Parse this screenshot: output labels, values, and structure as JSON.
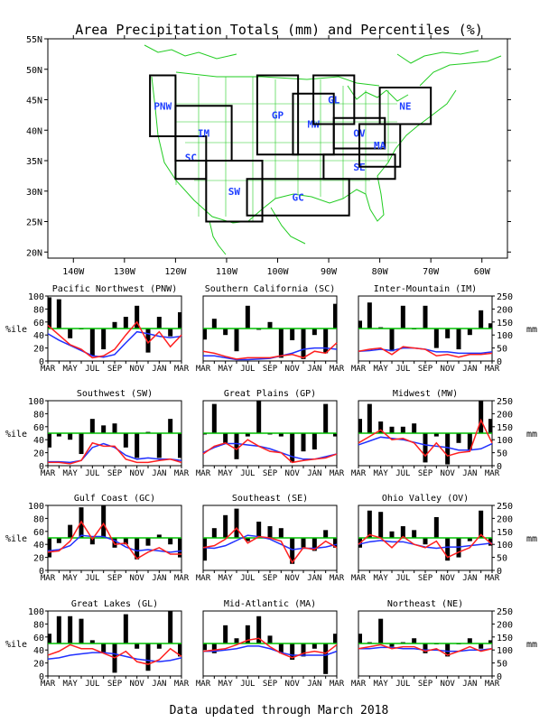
{
  "title": "Area Precipitation Totals (mm) and Percentiles (%)",
  "footer": "Data updated through March 2018",
  "colors": {
    "bar": "#000000",
    "percentile_line": "#ff2020",
    "normal_line": "#2030ff",
    "reference_line": "#00c000",
    "map_lines": "#22cc22",
    "region_box": "#000000",
    "region_label": "#1f3fff"
  },
  "map": {
    "lon_labels": [
      "140W",
      "130W",
      "120W",
      "110W",
      "100W",
      "90W",
      "80W",
      "70W",
      "60W"
    ],
    "lat_labels": [
      "55N",
      "50N",
      "45N",
      "40N",
      "35N",
      "30N",
      "25N",
      "20N"
    ],
    "regions": [
      "PNW",
      "SC",
      "IM",
      "SW",
      "GP",
      "MW",
      "GL",
      "OV",
      "SE",
      "GC",
      "MA",
      "NE"
    ]
  },
  "panel_axes": {
    "months": [
      "MAR",
      "MAY",
      "JUL",
      "SEP",
      "NOV",
      "JAN",
      "MAR"
    ],
    "left_ticks": [
      "100",
      "80",
      "60",
      "40",
      "20",
      "0"
    ],
    "right_ticks": [
      "250",
      "200",
      "150",
      "100",
      "50",
      "0"
    ],
    "left_label": "%ile",
    "right_label": "mm"
  },
  "chart_data": [
    {
      "type": "bar",
      "title": "Pacific Northwest (PNW)",
      "categories": [
        "MAR",
        "APR",
        "MAY",
        "JUN",
        "JUL",
        "AUG",
        "SEP",
        "OCT",
        "NOV",
        "DEC",
        "JAN",
        "FEB",
        "MAR"
      ],
      "ylim": [
        0,
        100
      ],
      "y2lim": [
        0,
        250
      ],
      "series": [
        {
          "values": [
            98,
            95,
            35,
            50,
            8,
            18,
            60,
            68,
            85,
            13,
            68,
            38,
            75
          ]
        },
        {
          "values": [
            55,
            40,
            25,
            18,
            5,
            8,
            18,
            40,
            60,
            28,
            45,
            22,
            40
          ]
        },
        {
          "values": [
            42,
            32,
            24,
            16,
            8,
            6,
            10,
            28,
            45,
            42,
            38,
            36,
            38
          ]
        }
      ]
    },
    {
      "type": "bar",
      "title": "Southern California (SC)",
      "categories": [
        "MAR",
        "APR",
        "MAY",
        "JUN",
        "JUL",
        "AUG",
        "SEP",
        "OCT",
        "NOV",
        "DEC",
        "JAN",
        "FEB",
        "MAR"
      ],
      "ylim": [
        0,
        100
      ],
      "y2lim": [
        0,
        250
      ],
      "series": [
        {
          "values": [
            33,
            65,
            40,
            15,
            85,
            48,
            60,
            5,
            32,
            3,
            40,
            12,
            88
          ]
        },
        {
          "values": [
            15,
            12,
            7,
            3,
            5,
            5,
            5,
            8,
            10,
            5,
            15,
            12,
            28
          ]
        },
        {
          "values": [
            8,
            8,
            5,
            2,
            2,
            3,
            4,
            8,
            12,
            18,
            20,
            20,
            18
          ]
        }
      ]
    },
    {
      "type": "bar",
      "title": "Inter-Mountain (IM)",
      "categories": [
        "MAR",
        "APR",
        "MAY",
        "JUN",
        "JUL",
        "AUG",
        "SEP",
        "OCT",
        "NOV",
        "DEC",
        "JAN",
        "FEB",
        "MAR"
      ],
      "ylim": [
        0,
        100
      ],
      "y2lim": [
        0,
        250
      ],
      "series": [
        {
          "values": [
            62,
            90,
            52,
            15,
            85,
            50,
            85,
            20,
            35,
            18,
            40,
            78,
            58
          ]
        },
        {
          "values": [
            15,
            18,
            20,
            10,
            22,
            20,
            18,
            8,
            10,
            6,
            10,
            10,
            12
          ]
        },
        {
          "values": [
            15,
            16,
            18,
            16,
            20,
            20,
            18,
            14,
            14,
            12,
            12,
            12,
            14
          ]
        }
      ]
    },
    {
      "type": "bar",
      "title": "Southwest (SW)",
      "categories": [
        "MAR",
        "APR",
        "MAY",
        "JUN",
        "JUL",
        "AUG",
        "SEP",
        "OCT",
        "NOV",
        "DEC",
        "JAN",
        "FEB",
        "MAR"
      ],
      "ylim": [
        0,
        100
      ],
      "y2lim": [
        0,
        250
      ],
      "series": [
        {
          "values": [
            28,
            45,
            40,
            18,
            72,
            62,
            65,
            28,
            12,
            52,
            12,
            72,
            12
          ]
        },
        {
          "values": [
            5,
            5,
            3,
            8,
            35,
            30,
            30,
            10,
            5,
            5,
            8,
            10,
            5
          ]
        },
        {
          "values": [
            6,
            6,
            5,
            8,
            28,
            34,
            28,
            16,
            10,
            12,
            10,
            10,
            8
          ]
        }
      ]
    },
    {
      "type": "bar",
      "title": "Great Plains (GP)",
      "categories": [
        "MAR",
        "APR",
        "MAY",
        "JUN",
        "JUL",
        "AUG",
        "SEP",
        "OCT",
        "NOV",
        "DEC",
        "JAN",
        "FEB",
        "MAR"
      ],
      "ylim": [
        0,
        100
      ],
      "y2lim": [
        0,
        250
      ],
      "series": [
        {
          "values": [
            48,
            95,
            35,
            10,
            45,
            100,
            48,
            45,
            5,
            22,
            25,
            95,
            45
          ]
        },
        {
          "values": [
            18,
            30,
            35,
            25,
            40,
            30,
            22,
            20,
            5,
            8,
            10,
            12,
            18
          ]
        },
        {
          "values": [
            20,
            28,
            34,
            34,
            32,
            30,
            26,
            20,
            14,
            10,
            10,
            14,
            18
          ]
        }
      ]
    },
    {
      "type": "bar",
      "title": "Midwest (MW)",
      "categories": [
        "MAR",
        "APR",
        "MAY",
        "JUN",
        "JUL",
        "AUG",
        "SEP",
        "OCT",
        "NOV",
        "DEC",
        "JAN",
        "FEB",
        "MAR"
      ],
      "ylim": [
        0,
        100
      ],
      "y2lim": [
        0,
        250
      ],
      "series": [
        {
          "values": [
            72,
            95,
            68,
            60,
            60,
            65,
            5,
            45,
            2,
            35,
            25,
            100,
            72
          ]
        },
        {
          "values": [
            35,
            45,
            55,
            40,
            42,
            35,
            15,
            35,
            15,
            20,
            22,
            70,
            35
          ]
        },
        {
          "values": [
            32,
            38,
            44,
            42,
            40,
            36,
            32,
            30,
            28,
            24,
            24,
            26,
            34
          ]
        }
      ]
    },
    {
      "type": "bar",
      "title": "Gulf Coast (GC)",
      "categories": [
        "MAR",
        "APR",
        "MAY",
        "JUN",
        "JUL",
        "AUG",
        "SEP",
        "OCT",
        "NOV",
        "DEC",
        "JAN",
        "FEB",
        "MAR"
      ],
      "ylim": [
        0,
        100
      ],
      "y2lim": [
        0,
        250
      ],
      "series": [
        {
          "values": [
            20,
            42,
            70,
            97,
            40,
            100,
            35,
            40,
            17,
            38,
            55,
            40,
            20
          ]
        },
        {
          "values": [
            28,
            30,
            45,
            75,
            48,
            72,
            40,
            42,
            18,
            28,
            35,
            25,
            25
          ]
        },
        {
          "values": [
            30,
            32,
            38,
            54,
            52,
            52,
            46,
            36,
            30,
            32,
            30,
            28,
            30
          ]
        }
      ]
    },
    {
      "type": "bar",
      "title": "Southeast (SE)",
      "categories": [
        "MAR",
        "APR",
        "MAY",
        "JUN",
        "JUL",
        "AUG",
        "SEP",
        "OCT",
        "NOV",
        "DEC",
        "JAN",
        "FEB",
        "MAR"
      ],
      "ylim": [
        0,
        100
      ],
      "y2lim": [
        0,
        250
      ],
      "series": [
        {
          "values": [
            15,
            65,
            85,
            95,
            45,
            75,
            68,
            65,
            10,
            35,
            30,
            62,
            35
          ]
        },
        {
          "values": [
            35,
            38,
            48,
            65,
            42,
            52,
            50,
            45,
            12,
            35,
            32,
            45,
            35
          ]
        },
        {
          "values": [
            35,
            34,
            38,
            46,
            54,
            52,
            48,
            40,
            32,
            34,
            34,
            36,
            40
          ]
        }
      ]
    },
    {
      "type": "bar",
      "title": "Ohio Valley (OV)",
      "categories": [
        "MAR",
        "APR",
        "MAY",
        "JUN",
        "JUL",
        "AUG",
        "SEP",
        "OCT",
        "NOV",
        "DEC",
        "JAN",
        "FEB",
        "MAR"
      ],
      "ylim": [
        0,
        100
      ],
      "y2lim": [
        0,
        250
      ],
      "series": [
        {
          "values": [
            35,
            92,
            90,
            60,
            68,
            62,
            40,
            82,
            15,
            20,
            45,
            92,
            38
          ]
        },
        {
          "values": [
            40,
            55,
            50,
            35,
            52,
            40,
            35,
            45,
            20,
            28,
            35,
            55,
            40
          ]
        },
        {
          "values": [
            40,
            44,
            46,
            44,
            44,
            40,
            36,
            34,
            36,
            36,
            38,
            40,
            42
          ]
        }
      ]
    },
    {
      "type": "bar",
      "title": "Great Lakes (GL)",
      "categories": [
        "MAR",
        "APR",
        "MAY",
        "JUN",
        "JUL",
        "AUG",
        "SEP",
        "OCT",
        "NOV",
        "DEC",
        "JAN",
        "FEB",
        "MAR"
      ],
      "ylim": [
        0,
        100
      ],
      "y2lim": [
        0,
        250
      ],
      "series": [
        {
          "values": [
            65,
            92,
            92,
            88,
            55,
            35,
            5,
            95,
            42,
            8,
            42,
            100,
            30
          ]
        },
        {
          "values": [
            32,
            38,
            48,
            42,
            42,
            35,
            28,
            38,
            22,
            18,
            25,
            42,
            30
          ]
        },
        {
          "values": [
            26,
            28,
            32,
            34,
            36,
            36,
            34,
            30,
            26,
            24,
            22,
            24,
            28
          ]
        }
      ]
    },
    {
      "type": "bar",
      "title": "Mid-Atlantic (MA)",
      "categories": [
        "MAR",
        "APR",
        "MAY",
        "JUN",
        "JUL",
        "AUG",
        "SEP",
        "OCT",
        "NOV",
        "DEC",
        "JAN",
        "FEB",
        "MAR"
      ],
      "ylim": [
        0,
        100
      ],
      "y2lim": [
        0,
        250
      ],
      "series": [
        {
          "values": [
            40,
            35,
            78,
            58,
            78,
            92,
            62,
            35,
            25,
            30,
            42,
            3,
            65
          ]
        },
        {
          "values": [
            38,
            40,
            42,
            48,
            55,
            58,
            45,
            35,
            28,
            35,
            38,
            35,
            48
          ]
        },
        {
          "values": [
            38,
            38,
            40,
            42,
            46,
            46,
            42,
            36,
            32,
            32,
            32,
            32,
            38
          ]
        }
      ]
    },
    {
      "type": "bar",
      "title": "Northeast (NE)",
      "categories": [
        "MAR",
        "APR",
        "MAY",
        "JUN",
        "JUL",
        "AUG",
        "SEP",
        "OCT",
        "NOV",
        "DEC",
        "JAN",
        "FEB",
        "MAR"
      ],
      "ylim": [
        0,
        100
      ],
      "y2lim": [
        0,
        250
      ],
      "series": [
        {
          "values": [
            65,
            52,
            88,
            45,
            52,
            58,
            35,
            50,
            30,
            50,
            58,
            42,
            55
          ]
        },
        {
          "values": [
            42,
            45,
            48,
            42,
            45,
            45,
            38,
            42,
            32,
            38,
            45,
            38,
            42
          ]
        },
        {
          "values": [
            42,
            42,
            44,
            44,
            42,
            42,
            40,
            40,
            38,
            38,
            40,
            40,
            42
          ]
        }
      ]
    }
  ]
}
